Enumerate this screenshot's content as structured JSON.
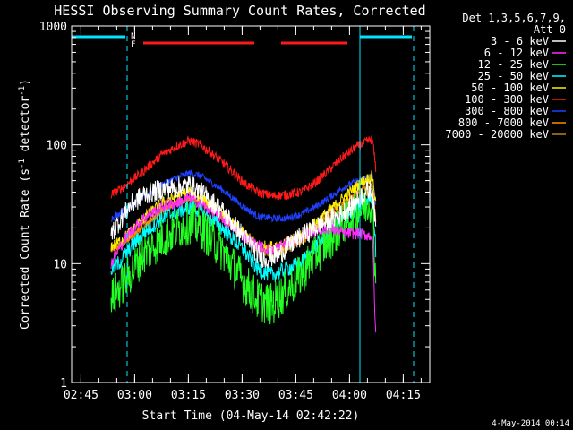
{
  "colors": {
    "background": "#000000",
    "axis": "#ffffff",
    "cyan": "#00e5ff",
    "red_flag": "#ff1a1a"
  },
  "chart_data": {
    "type": "line",
    "title": "HESSI Observing Summary Count Rates, Corrected",
    "xlabel": "Start Time (04-May-14 02:42:22)",
    "ylabel": "Corrected Count Rate (s^-1 detector^-1)",
    "ylabel_parts": {
      "base": "Corrected Count Rate (s",
      "sup1": "-1",
      "mid": " detector",
      "sup2": "-1",
      "end": ")"
    },
    "y_scale": "log",
    "ylim": [
      1,
      1000
    ],
    "xlim_minutes": [
      0,
      100
    ],
    "xticks": [
      {
        "m": 0,
        "label": ""
      },
      {
        "m": 2.6,
        "label": "02:45"
      },
      {
        "m": 17.6,
        "label": "03:00"
      },
      {
        "m": 32.6,
        "label": "03:15"
      },
      {
        "m": 47.6,
        "label": "03:30"
      },
      {
        "m": 62.6,
        "label": "03:45"
      },
      {
        "m": 77.6,
        "label": "04:00"
      },
      {
        "m": 92.6,
        "label": "04:15"
      }
    ],
    "yticks": [
      {
        "v": 1,
        "label": "1"
      },
      {
        "v": 10,
        "label": "10"
      },
      {
        "v": 100,
        "label": "100"
      },
      {
        "v": 1000,
        "label": "1000"
      }
    ],
    "legend_header": [
      "Det 1,3,5,6,7,9,",
      "Att 0"
    ],
    "legend_placement": "right",
    "footer_date": "4-May-2014 00:14",
    "flag_labels": {
      "n": "N",
      "f": "F"
    },
    "data_start_minute": 11,
    "data_end_minute": 85,
    "vlines": [
      {
        "m": 0,
        "style": "solid"
      },
      {
        "m": 15.5,
        "style": "dashed"
      },
      {
        "m": 80.5,
        "style": "solid"
      },
      {
        "m": 95.5,
        "style": "dashed"
      }
    ],
    "night_bars": [
      {
        "start": 0,
        "end": 15
      },
      {
        "start": 80.5,
        "end": 95
      }
    ],
    "flare_bars": [
      {
        "start": 20,
        "end": 51
      },
      {
        "start": 58.5,
        "end": 77
      }
    ],
    "series": [
      {
        "name": "3 - 6 keV",
        "color": "#ffffff",
        "noise": 0.09,
        "points": [
          [
            11,
            18
          ],
          [
            13,
            22
          ],
          [
            16,
            30
          ],
          [
            20,
            38
          ],
          [
            25,
            42
          ],
          [
            30,
            44
          ],
          [
            33,
            46
          ],
          [
            36,
            40
          ],
          [
            42,
            28
          ],
          [
            48,
            17
          ],
          [
            52,
            12
          ],
          [
            54,
            11
          ],
          [
            58,
            12
          ],
          [
            63,
            16
          ],
          [
            68,
            20
          ],
          [
            74,
            25
          ],
          [
            78,
            30
          ],
          [
            82,
            40
          ],
          [
            84,
            42
          ],
          [
            85,
            18
          ]
        ]
      },
      {
        "name": "6 - 12 keV",
        "color": "#ff2bff",
        "noise": 0.05,
        "points": [
          [
            11,
            10
          ],
          [
            13,
            13
          ],
          [
            16,
            18
          ],
          [
            20,
            24
          ],
          [
            25,
            30
          ],
          [
            30,
            33
          ],
          [
            33,
            36
          ],
          [
            36,
            32
          ],
          [
            42,
            24
          ],
          [
            48,
            17
          ],
          [
            52,
            14
          ],
          [
            56,
            13
          ],
          [
            60,
            15
          ],
          [
            66,
            18
          ],
          [
            72,
            20
          ],
          [
            76,
            18
          ],
          [
            80,
            18
          ],
          [
            84,
            17
          ],
          [
            85,
            2
          ]
        ]
      },
      {
        "name": "12 - 25 keV",
        "color": "#22ff22",
        "noise": 0.18,
        "points": [
          [
            11,
            5
          ],
          [
            13,
            6
          ],
          [
            16,
            8
          ],
          [
            20,
            12
          ],
          [
            25,
            16
          ],
          [
            30,
            20
          ],
          [
            33,
            22
          ],
          [
            36,
            20
          ],
          [
            42,
            13
          ],
          [
            48,
            7
          ],
          [
            52,
            5
          ],
          [
            56,
            4.5
          ],
          [
            60,
            6
          ],
          [
            64,
            8
          ],
          [
            68,
            12
          ],
          [
            72,
            16
          ],
          [
            76,
            22
          ],
          [
            80,
            28
          ],
          [
            84,
            34
          ],
          [
            85,
            6
          ]
        ]
      },
      {
        "name": "25 - 50 keV",
        "color": "#00ffff",
        "noise": 0.07,
        "points": [
          [
            11,
            9
          ],
          [
            13,
            10
          ],
          [
            16,
            13
          ],
          [
            20,
            18
          ],
          [
            25,
            24
          ],
          [
            30,
            28
          ],
          [
            33,
            30
          ],
          [
            36,
            28
          ],
          [
            42,
            20
          ],
          [
            48,
            13
          ],
          [
            52,
            9
          ],
          [
            56,
            8
          ],
          [
            60,
            9
          ],
          [
            64,
            10
          ],
          [
            68,
            14
          ],
          [
            72,
            18
          ],
          [
            76,
            24
          ],
          [
            80,
            30
          ],
          [
            84,
            38
          ],
          [
            85,
            12
          ]
        ]
      },
      {
        "name": "50 - 100 keV",
        "color": "#ffee00",
        "noise": 0.05,
        "points": [
          [
            11,
            14
          ],
          [
            13,
            15
          ],
          [
            16,
            18
          ],
          [
            20,
            24
          ],
          [
            25,
            32
          ],
          [
            30,
            38
          ],
          [
            33,
            40
          ],
          [
            36,
            36
          ],
          [
            42,
            26
          ],
          [
            48,
            18
          ],
          [
            52,
            14
          ],
          [
            56,
            14
          ],
          [
            60,
            15
          ],
          [
            64,
            17
          ],
          [
            68,
            22
          ],
          [
            72,
            28
          ],
          [
            76,
            36
          ],
          [
            80,
            46
          ],
          [
            84,
            55
          ],
          [
            85,
            30
          ]
        ]
      },
      {
        "name": "100 - 300 keV",
        "color": "#ff1a1a",
        "noise": 0.04,
        "points": [
          [
            11,
            38
          ],
          [
            13,
            41
          ],
          [
            16,
            48
          ],
          [
            20,
            60
          ],
          [
            25,
            82
          ],
          [
            30,
            100
          ],
          [
            33,
            108
          ],
          [
            36,
            100
          ],
          [
            42,
            72
          ],
          [
            48,
            48
          ],
          [
            52,
            40
          ],
          [
            56,
            37
          ],
          [
            60,
            38
          ],
          [
            64,
            40
          ],
          [
            68,
            48
          ],
          [
            72,
            62
          ],
          [
            76,
            80
          ],
          [
            80,
            98
          ],
          [
            84,
            112
          ],
          [
            85,
            60
          ]
        ]
      },
      {
        "name": "300 - 800 keV",
        "color": "#2040ff",
        "noise": 0.03,
        "points": [
          [
            11,
            24
          ],
          [
            13,
            26
          ],
          [
            16,
            30
          ],
          [
            20,
            36
          ],
          [
            25,
            46
          ],
          [
            30,
            54
          ],
          [
            33,
            58
          ],
          [
            36,
            55
          ],
          [
            42,
            42
          ],
          [
            48,
            30
          ],
          [
            52,
            25
          ],
          [
            56,
            24
          ],
          [
            60,
            24
          ],
          [
            64,
            26
          ],
          [
            68,
            30
          ],
          [
            72,
            36
          ],
          [
            76,
            44
          ],
          [
            80,
            50
          ],
          [
            84,
            54
          ],
          [
            85,
            30
          ]
        ]
      },
      {
        "name": "800 - 7000 keV",
        "color": "#ff8c00",
        "noise": 0.03,
        "points": [
          [
            11,
            13
          ],
          [
            13,
            14
          ],
          [
            16,
            16
          ],
          [
            20,
            21
          ],
          [
            25,
            28
          ],
          [
            30,
            34
          ],
          [
            33,
            36
          ],
          [
            36,
            34
          ],
          [
            42,
            25
          ],
          [
            48,
            18
          ],
          [
            52,
            14
          ],
          [
            56,
            13
          ],
          [
            60,
            14
          ],
          [
            64,
            16
          ],
          [
            68,
            20
          ],
          [
            72,
            26
          ],
          [
            76,
            33
          ],
          [
            80,
            40
          ],
          [
            84,
            46
          ],
          [
            85,
            22
          ]
        ]
      },
      {
        "name": "7000 - 20000 keV",
        "color": "#b8860b",
        "noise": 0.03,
        "points": [
          [
            11,
            13
          ],
          [
            13,
            14
          ],
          [
            16,
            16
          ],
          [
            20,
            20
          ],
          [
            25,
            27
          ],
          [
            30,
            33
          ],
          [
            33,
            35
          ],
          [
            36,
            33
          ],
          [
            42,
            24
          ],
          [
            48,
            17
          ],
          [
            52,
            13
          ],
          [
            56,
            12
          ],
          [
            60,
            13
          ],
          [
            64,
            15
          ],
          [
            68,
            19
          ],
          [
            72,
            24
          ],
          [
            76,
            30
          ],
          [
            80,
            36
          ],
          [
            84,
            42
          ],
          [
            85,
            20
          ]
        ]
      }
    ]
  }
}
